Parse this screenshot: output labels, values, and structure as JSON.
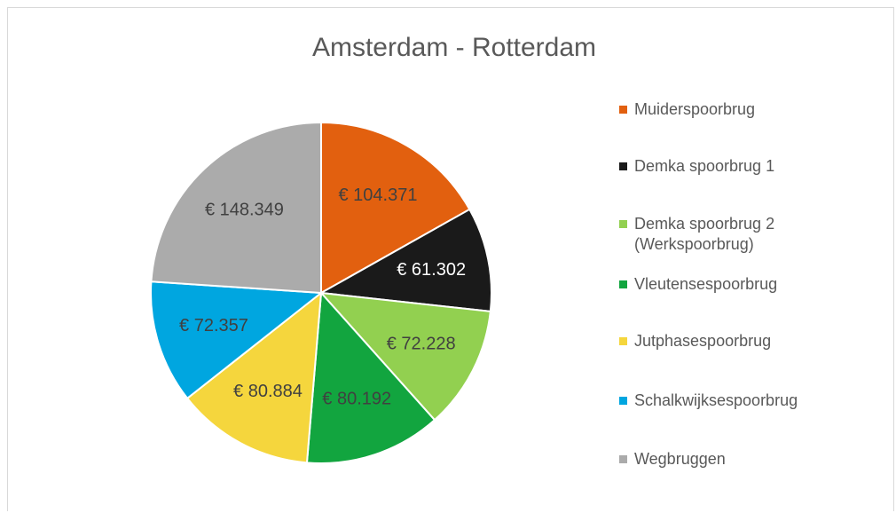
{
  "chart_data": {
    "type": "pie",
    "title": "Amsterdam - Rotterdam",
    "categories": [
      "Muiderspoorbrug",
      "Demka spoorbrug 1",
      "Demka spoorbrug 2 (Werkspoorbrug)",
      "Vleutensespoorbrug",
      "Jutphasespoorbrug",
      "Schalkwijksespoorbrug",
      "Wegbruggen"
    ],
    "values": [
      104371,
      61302,
      72228,
      80192,
      80884,
      72357,
      148349
    ],
    "value_labels": [
      "€ 104.371",
      "€ 61.302",
      "€ 72.228",
      "€ 80.192",
      "€ 80.884",
      "€ 72.357",
      "€ 148.349"
    ],
    "colors": [
      "#e2600f",
      "#1a1a1a",
      "#92d050",
      "#12a53f",
      "#f5d63d",
      "#00a6e0",
      "#ababab"
    ],
    "legend": "right"
  }
}
